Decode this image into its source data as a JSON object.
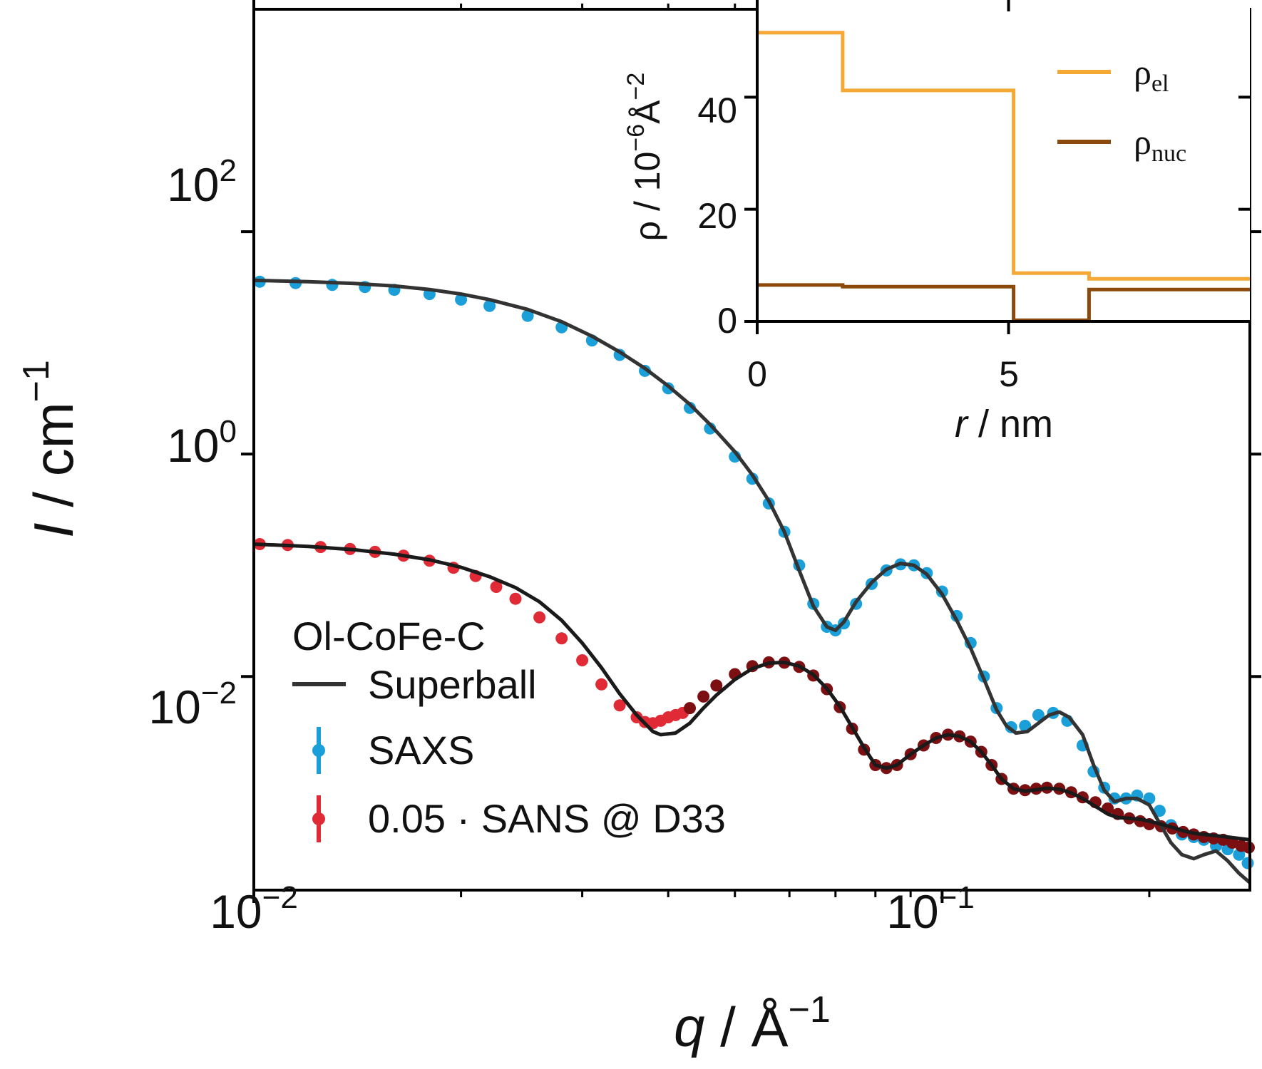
{
  "chart_data": [
    {
      "type": "scatter",
      "xlabel": {
        "var": "q",
        "unit": "Å",
        "unit_exp": "−1"
      },
      "ylabel": {
        "var": "I",
        "unit": "cm",
        "unit_exp": "−1"
      },
      "xscale": "log",
      "yscale": "log",
      "xlim": [
        0.01,
        0.28
      ],
      "ylim": [
        0.00012,
        10000
      ],
      "x_ticks": [
        {
          "value": 0.01,
          "base": "10",
          "exp": "−2"
        },
        {
          "value": 0.1,
          "base": "10",
          "exp": "−1"
        }
      ],
      "y_ticks": [
        {
          "value": 100,
          "base": "10",
          "exp": "2"
        },
        {
          "value": 1,
          "base": "10",
          "exp": "0"
        },
        {
          "value": 0.01,
          "base": "10",
          "exp": "−2"
        }
      ],
      "grid": false,
      "legend": {
        "placement": "lower-left",
        "title": "Ol-CoFe-C",
        "entries": [
          {
            "label": "Superball",
            "marker": "line",
            "color": "#333333"
          },
          {
            "label": "SAXS",
            "marker": "errorbar-dot",
            "color": "#1a9fd8"
          },
          {
            "label": "0.05 · SANS @ D33",
            "marker": "errorbar-dot",
            "color": "#e02a35"
          }
        ]
      },
      "series": [
        {
          "name": "SAXS",
          "kind": "points",
          "color": "#1a9fd8",
          "x": [
            0.0102,
            0.0115,
            0.013,
            0.0145,
            0.016,
            0.018,
            0.02,
            0.022,
            0.025,
            0.028,
            0.031,
            0.034,
            0.037,
            0.04,
            0.043,
            0.046,
            0.05,
            0.053,
            0.056,
            0.059,
            0.062,
            0.065,
            0.068,
            0.07,
            0.072,
            0.075,
            0.079,
            0.083,
            0.087,
            0.091,
            0.095,
            0.1,
            0.105,
            0.11,
            0.115,
            0.12,
            0.126,
            0.132,
            0.138,
            0.145,
            0.152,
            0.16,
            0.166,
            0.172,
            0.178,
            0.185,
            0.192,
            0.2,
            0.207,
            0.215,
            0.223,
            0.232,
            0.24,
            0.25,
            0.26,
            0.27,
            0.278
          ],
          "y": [
            35.5,
            34.5,
            33.2,
            31.8,
            30,
            27.5,
            24.5,
            21.5,
            17.5,
            13.8,
            10.5,
            7.8,
            5.6,
            3.9,
            2.6,
            1.7,
            0.95,
            0.6,
            0.36,
            0.2,
            0.1,
            0.045,
            0.028,
            0.026,
            0.03,
            0.045,
            0.068,
            0.09,
            0.102,
            0.1,
            0.085,
            0.058,
            0.035,
            0.02,
            0.01,
            0.0052,
            0.0035,
            0.0036,
            0.0045,
            0.0047,
            0.004,
            0.0024,
            0.0014,
            0.001,
            0.0008,
            0.0008,
            0.00085,
            0.0008,
            0.00062,
            0.00046,
            0.00038,
            0.00036,
            0.00034,
            0.0003,
            0.00028,
            0.00025,
            0.00021
          ]
        },
        {
          "name": "Superball",
          "kind": "line",
          "color": "#333333",
          "x": [
            0.01,
            0.012,
            0.014,
            0.016,
            0.018,
            0.02,
            0.022,
            0.025,
            0.028,
            0.031,
            0.034,
            0.037,
            0.04,
            0.043,
            0.046,
            0.05,
            0.053,
            0.056,
            0.059,
            0.062,
            0.065,
            0.068,
            0.07,
            0.072,
            0.075,
            0.079,
            0.083,
            0.087,
            0.091,
            0.095,
            0.1,
            0.105,
            0.11,
            0.115,
            0.12,
            0.124,
            0.128,
            0.133,
            0.138,
            0.143,
            0.148,
            0.153,
            0.16,
            0.166,
            0.172,
            0.178,
            0.185,
            0.192,
            0.2,
            0.207,
            0.215,
            0.223,
            0.232,
            0.24,
            0.25,
            0.26,
            0.27,
            0.28
          ],
          "y": [
            36.5,
            35.5,
            34.2,
            32.5,
            30.2,
            27.5,
            24.5,
            20,
            15.5,
            11.5,
            8.3,
            5.9,
            4.1,
            2.8,
            1.85,
            1.05,
            0.65,
            0.38,
            0.2,
            0.09,
            0.043,
            0.028,
            0.026,
            0.031,
            0.047,
            0.07,
            0.092,
            0.104,
            0.1,
            0.083,
            0.055,
            0.032,
            0.018,
            0.0095,
            0.005,
            0.0036,
            0.0031,
            0.0032,
            0.0038,
            0.0045,
            0.0048,
            0.0043,
            0.003,
            0.0016,
            0.00095,
            0.00075,
            0.0008,
            0.0008,
            0.0007,
            0.00048,
            0.00032,
            0.00025,
            0.00023,
            0.00025,
            0.00027,
            0.00022,
            0.00017,
            0.00014
          ]
        },
        {
          "name": "0.05 · SANS @ D33",
          "kind": "points",
          "color": "#e02a35",
          "x": [
            0.0102,
            0.0112,
            0.0125,
            0.0138,
            0.015,
            0.0165,
            0.018,
            0.0195,
            0.021,
            0.0225,
            0.024,
            0.026,
            0.028,
            0.03,
            0.032,
            0.034,
            0.036,
            0.037,
            0.038,
            0.039,
            0.04,
            0.041,
            0.042
          ],
          "y": [
            0.155,
            0.152,
            0.146,
            0.14,
            0.132,
            0.122,
            0.11,
            0.095,
            0.08,
            0.064,
            0.05,
            0.034,
            0.022,
            0.014,
            0.0085,
            0.0055,
            0.0043,
            0.0039,
            0.0038,
            0.004,
            0.0043,
            0.0045,
            0.0047
          ]
        },
        {
          "name": "0.05 · SANS @ D33 (high q)",
          "kind": "points",
          "color": "#7b0f12",
          "x": [
            0.043,
            0.045,
            0.047,
            0.05,
            0.053,
            0.056,
            0.059,
            0.062,
            0.065,
            0.068,
            0.071,
            0.074,
            0.077,
            0.08,
            0.083,
            0.086,
            0.09,
            0.094,
            0.098,
            0.102,
            0.106,
            0.11,
            0.114,
            0.118,
            0.122,
            0.127,
            0.132,
            0.137,
            0.142,
            0.148,
            0.154,
            0.16,
            0.167,
            0.174,
            0.18,
            0.187,
            0.194,
            0.2,
            0.208,
            0.216,
            0.224,
            0.232,
            0.24,
            0.248,
            0.256,
            0.264,
            0.272,
            0.279
          ],
          "y": [
            0.0052,
            0.0066,
            0.0083,
            0.0105,
            0.0124,
            0.0134,
            0.0133,
            0.0122,
            0.0102,
            0.0077,
            0.0053,
            0.0034,
            0.0022,
            0.0016,
            0.0015,
            0.0016,
            0.002,
            0.0024,
            0.0028,
            0.003,
            0.0029,
            0.0026,
            0.0021,
            0.0016,
            0.0012,
            0.00098,
            0.00095,
            0.00098,
            0.001,
            0.00098,
            0.00091,
            0.00082,
            0.00074,
            0.00065,
            0.00058,
            0.00053,
            0.0005,
            0.00047,
            0.00045,
            0.00043,
            0.0004,
            0.00038,
            0.00036,
            0.00035,
            0.00034,
            0.00032,
            0.0003,
            0.00029
          ]
        },
        {
          "name": "Superball (SANS)",
          "kind": "line",
          "color": "#1a1a1a",
          "x": [
            0.01,
            0.012,
            0.014,
            0.016,
            0.018,
            0.02,
            0.022,
            0.024,
            0.026,
            0.028,
            0.03,
            0.032,
            0.034,
            0.036,
            0.038,
            0.039,
            0.041,
            0.043,
            0.045,
            0.047,
            0.05,
            0.053,
            0.056,
            0.059,
            0.062,
            0.065,
            0.068,
            0.071,
            0.074,
            0.077,
            0.08,
            0.083,
            0.086,
            0.09,
            0.094,
            0.098,
            0.102,
            0.106,
            0.11,
            0.114,
            0.118,
            0.122,
            0.127,
            0.132,
            0.137,
            0.142,
            0.148,
            0.154,
            0.16,
            0.167,
            0.174,
            0.18,
            0.187,
            0.194,
            0.2,
            0.208,
            0.216,
            0.224,
            0.232,
            0.24,
            0.25,
            0.26,
            0.27,
            0.28
          ],
          "y": [
            0.155,
            0.148,
            0.138,
            0.126,
            0.112,
            0.096,
            0.079,
            0.063,
            0.047,
            0.032,
            0.02,
            0.012,
            0.007,
            0.0045,
            0.0032,
            0.003,
            0.0031,
            0.0038,
            0.0052,
            0.0068,
            0.0094,
            0.0118,
            0.0132,
            0.0134,
            0.0124,
            0.0104,
            0.0078,
            0.0054,
            0.0035,
            0.0023,
            0.0016,
            0.0015,
            0.0016,
            0.002,
            0.0024,
            0.0028,
            0.003,
            0.0029,
            0.0026,
            0.0021,
            0.0016,
            0.0012,
            0.00098,
            0.00093,
            0.00096,
            0.00099,
            0.00097,
            0.0009,
            0.0008,
            0.00068,
            0.00058,
            0.00054,
            0.00053,
            0.00052,
            0.0005,
            0.00047,
            0.00044,
            0.00041,
            0.00039,
            0.00038,
            0.00037,
            0.00036,
            0.00035,
            0.00034
          ]
        }
      ]
    },
    {
      "type": "line",
      "step": true,
      "xlabel": {
        "var": "r",
        "unit": "nm"
      },
      "ylabel": {
        "text": "ρ / 10",
        "exp": "−6",
        "unit": "Å",
        "unit_exp": "−2"
      },
      "xlim": [
        0,
        9.8
      ],
      "ylim": [
        0,
        52.5
      ],
      "x_ticks": [
        {
          "value": 0,
          "label": "0"
        },
        {
          "value": 5,
          "label": "5"
        }
      ],
      "y_ticks": [
        {
          "value": 0,
          "label": "0"
        },
        {
          "value": 20,
          "label": "20"
        },
        {
          "value": 40,
          "label": "40"
        }
      ],
      "grid": false,
      "legend": {
        "placement": "top-right"
      },
      "series": [
        {
          "name": "el",
          "symbol": "ρ",
          "color": "#f5a833",
          "x": [
            0,
            1.7,
            1.7,
            5.1,
            5.1,
            6.6,
            6.6,
            9.8
          ],
          "y": [
            51.5,
            51.5,
            41.2,
            41.2,
            8.6,
            8.6,
            7.6,
            7.6
          ]
        },
        {
          "name": "nuc",
          "symbol": "ρ",
          "color": "#8b4a0c",
          "x": [
            0,
            1.7,
            1.7,
            5.1,
            5.1,
            6.6,
            6.6,
            9.8
          ],
          "y": [
            6.5,
            6.5,
            6.2,
            6.2,
            0.2,
            0.2,
            5.7,
            5.7
          ]
        }
      ]
    }
  ]
}
